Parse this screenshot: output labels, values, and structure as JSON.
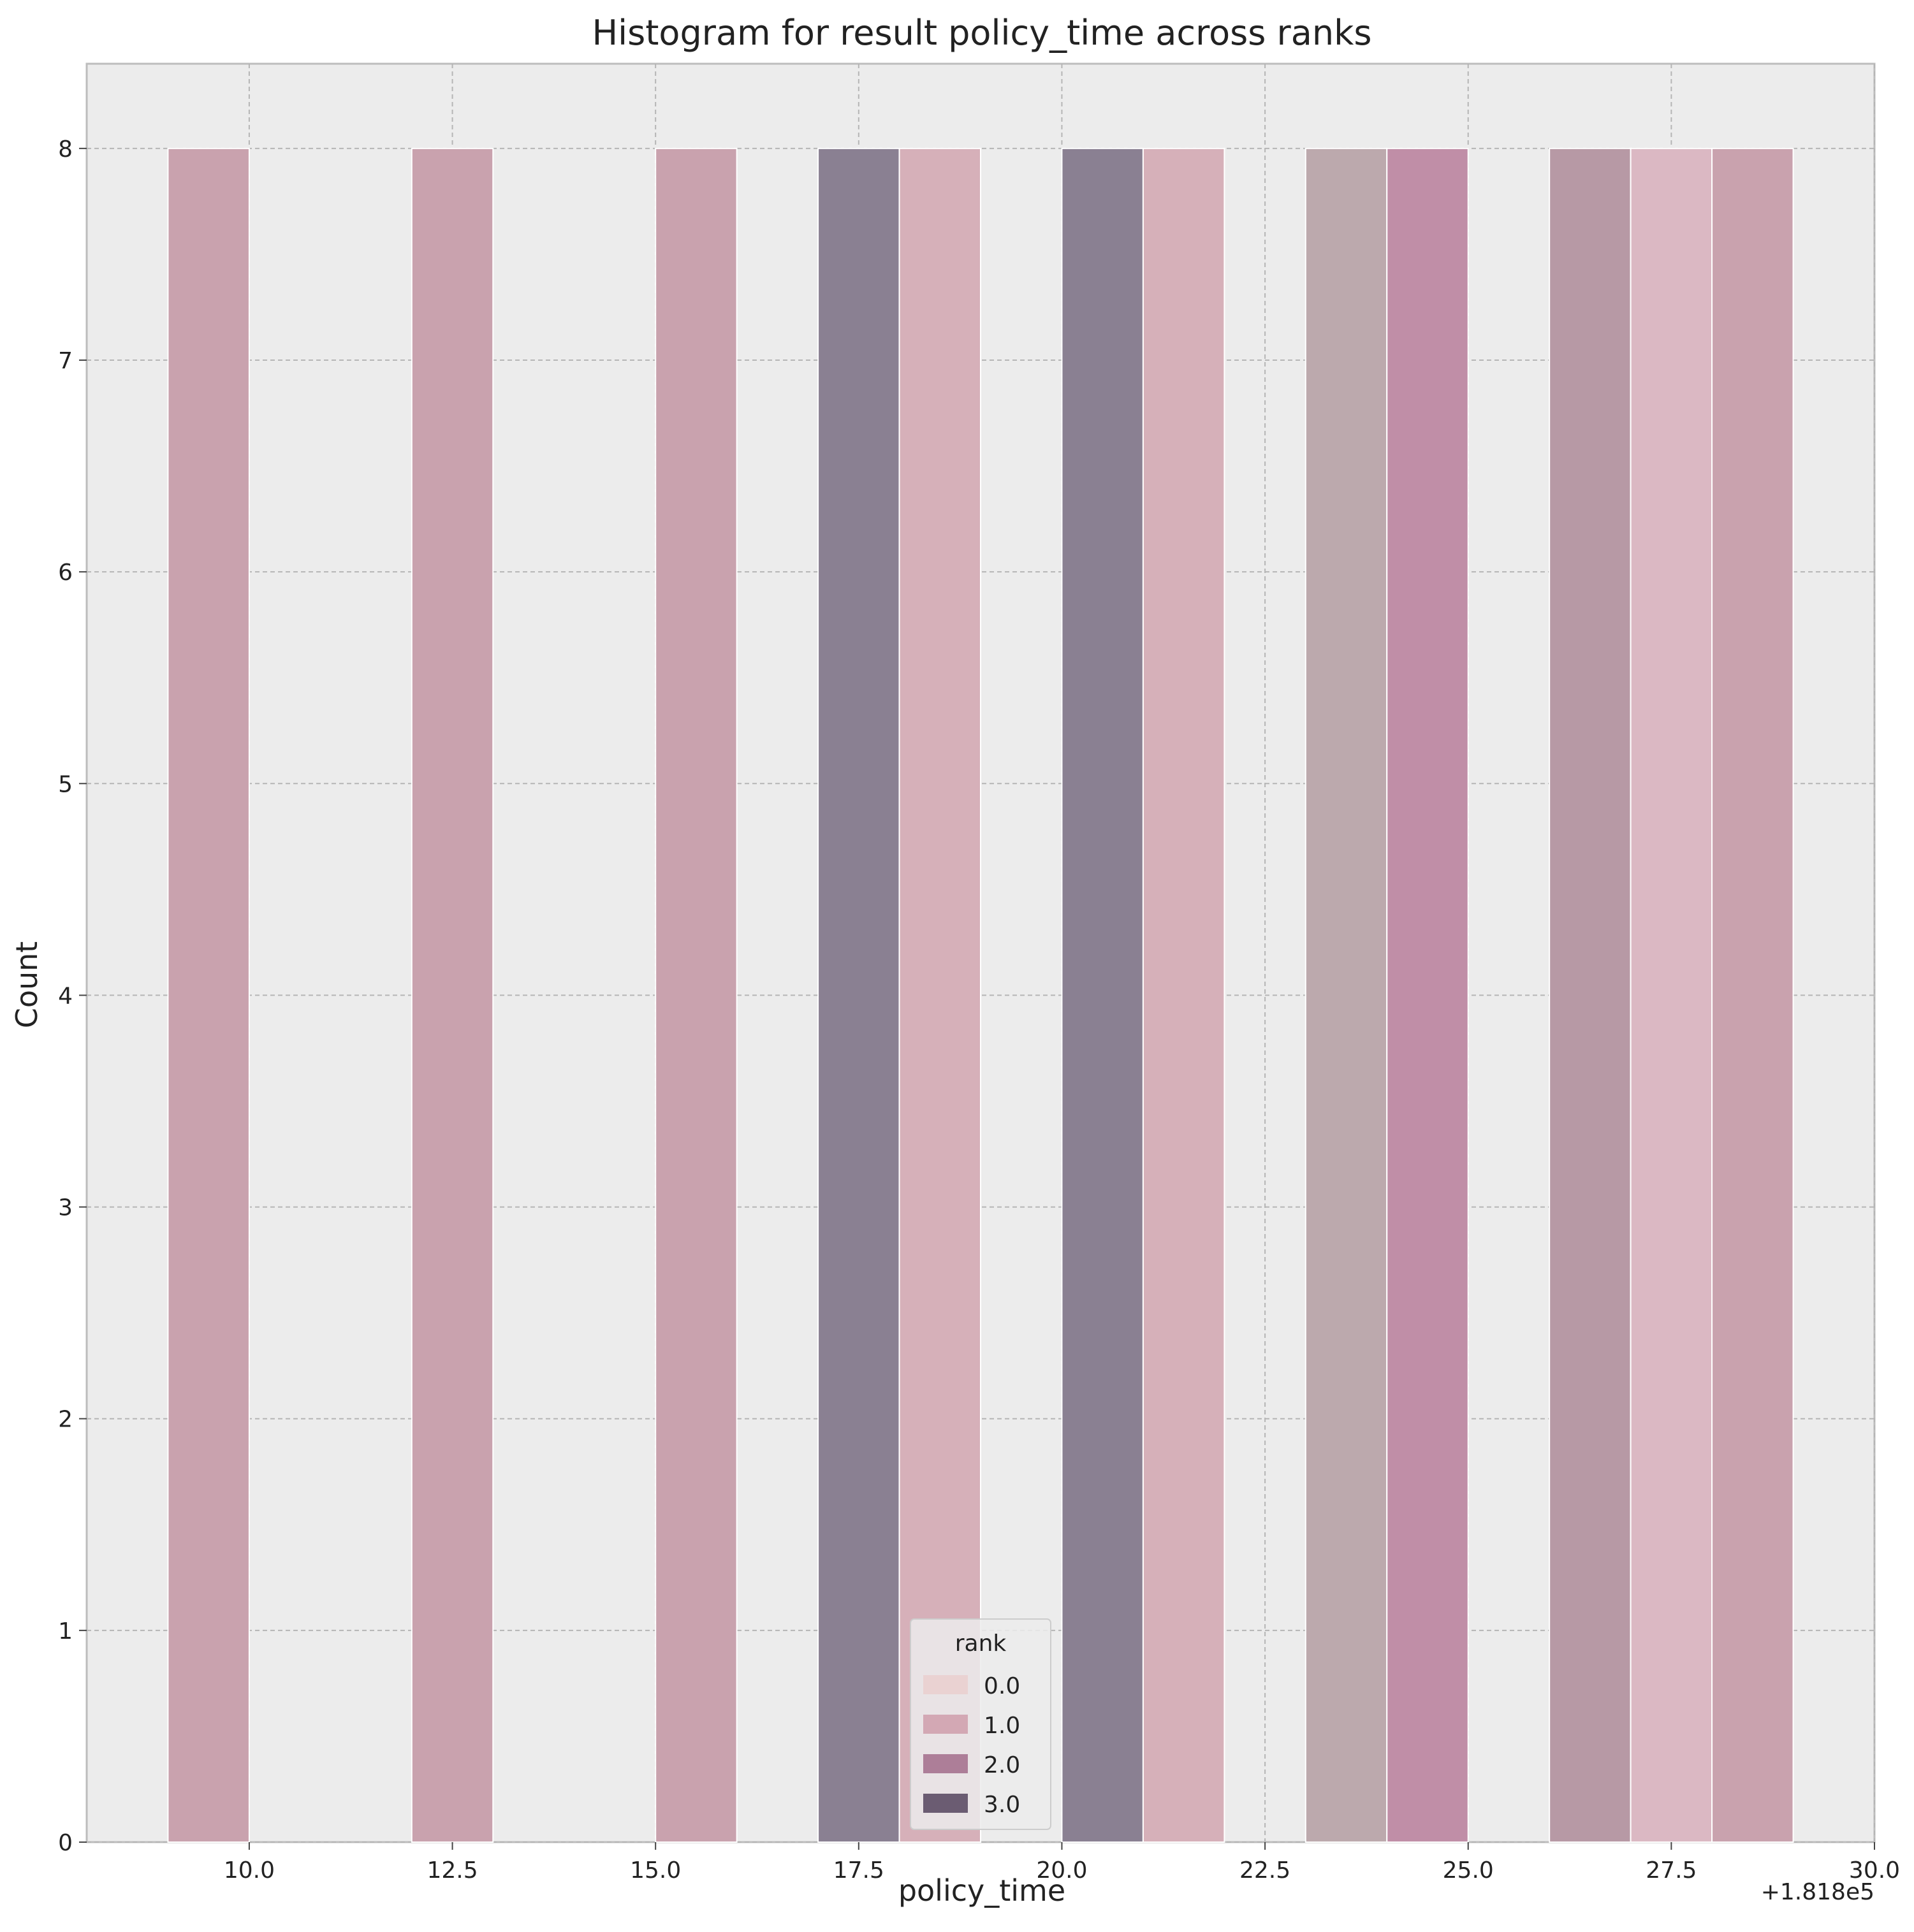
{
  "chart_data": {
    "type": "bar",
    "title": "Histogram for result policy_time across ranks",
    "xlabel": "policy_time",
    "ylabel": "Count",
    "x_offset_label": "+1.818e5",
    "xlim": [
      8,
      30
    ],
    "ylim": [
      0,
      8.4
    ],
    "x_ticks": [
      10.0,
      12.5,
      15.0,
      17.5,
      20.0,
      22.5,
      25.0,
      27.5,
      30.0
    ],
    "x_tick_labels": [
      "10.0",
      "12.5",
      "15.0",
      "17.5",
      "20.0",
      "22.5",
      "25.0",
      "27.5",
      "30.0"
    ],
    "y_ticks": [
      0,
      1,
      2,
      3,
      4,
      5,
      6,
      7,
      8
    ],
    "y_tick_labels": [
      "0",
      "1",
      "2",
      "3",
      "4",
      "5",
      "6",
      "7",
      "8"
    ],
    "grid": true,
    "legend_placement": "lower-center",
    "legend": {
      "title": "rank",
      "entries": [
        {
          "label": "0.0",
          "color": "#ead2d2"
        },
        {
          "label": "1.0",
          "color": "#d3a8b4"
        },
        {
          "label": "2.0",
          "color": "#ad7e98"
        },
        {
          "label": "3.0",
          "color": "#6b5c72"
        }
      ]
    },
    "bars": [
      {
        "x0": 9,
        "x1": 10,
        "count": 8,
        "color": "#c9a2ae"
      },
      {
        "x0": 12,
        "x1": 13,
        "count": 8,
        "color": "#c9a2ae"
      },
      {
        "x0": 15,
        "x1": 16,
        "count": 8,
        "color": "#c9a2ae"
      },
      {
        "x0": 17,
        "x1": 18,
        "count": 8,
        "color": "#8a8092"
      },
      {
        "x0": 18,
        "x1": 19,
        "count": 8,
        "color": "#d6b0b9"
      },
      {
        "x0": 20,
        "x1": 21,
        "count": 8,
        "color": "#8a8092"
      },
      {
        "x0": 21,
        "x1": 22,
        "count": 8,
        "color": "#d6b0b9"
      },
      {
        "x0": 23,
        "x1": 24,
        "count": 8,
        "color": "#bca9ad"
      },
      {
        "x0": 24,
        "x1": 25,
        "count": 8,
        "color": "#c08ea7"
      },
      {
        "x0": 26,
        "x1": 27,
        "count": 8,
        "color": "#b799a5"
      },
      {
        "x0": 27,
        "x1": 28,
        "count": 8,
        "color": "#dbb8c3"
      },
      {
        "x0": 28,
        "x1": 29,
        "count": 8,
        "color": "#c9a2ae"
      }
    ]
  }
}
